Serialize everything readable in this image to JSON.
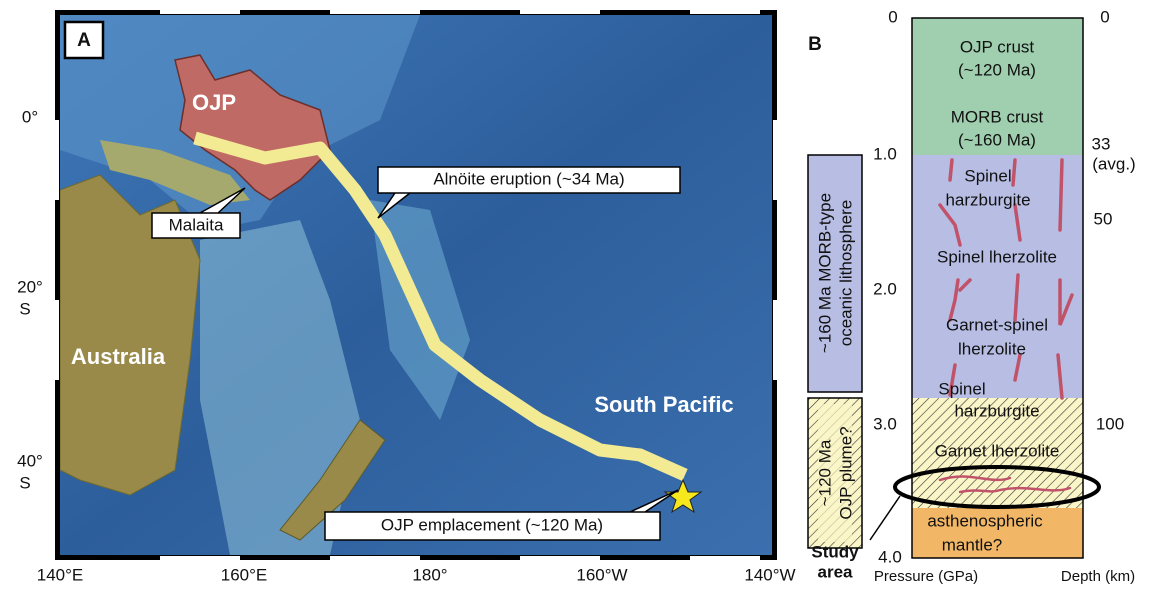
{
  "panel_a": {
    "label": "A",
    "places": {
      "ojp": "OJP",
      "australia": "Australia",
      "south_pacific": "South Pacific"
    },
    "callouts": {
      "malaita": "Malaita",
      "alnoite": "Alnöite eruption (~34 Ma)",
      "emplacement": "OJP emplacement (~120 Ma)"
    },
    "longitudes": [
      "140°E",
      "160°E",
      "180°",
      "160°W",
      "140°W"
    ],
    "latitudes": [
      {
        "degree": "0°"
      },
      {
        "degree": "20°",
        "hemisphere": "S"
      },
      {
        "degree": "40°",
        "hemisphere": "S"
      }
    ]
  },
  "panel_b": {
    "label": "B",
    "pressure_ticks": [
      "0",
      "1.0",
      "2.0",
      "3.0",
      "4.0"
    ],
    "depth_ticks": [
      {
        "value": "0"
      },
      {
        "value": "33",
        "note": "(avg.)"
      },
      {
        "value": "50"
      },
      {
        "value": "100"
      }
    ],
    "layers": [
      {
        "lines": [
          "OJP crust",
          "(~120 Ma)"
        ]
      },
      {
        "lines": [
          "MORB crust",
          "(~160 Ma)"
        ]
      },
      {
        "lines": [
          "Spinel",
          "harzburgite"
        ]
      },
      {
        "lines": [
          "Spinel lherzolite"
        ]
      },
      {
        "lines": [
          "Garnet-spinel",
          "lherzolite"
        ]
      },
      {
        "lines": [
          "Spinel",
          "harzburgite"
        ]
      },
      {
        "lines": [
          "Garnet lherzolite"
        ]
      },
      {
        "lines": [
          "asthenospheric",
          "mantle?"
        ]
      }
    ],
    "brackets": [
      {
        "lines": [
          "~160 Ma MORB-type",
          "oceanic lithosphere"
        ]
      },
      {
        "lines": [
          "~120 Ma",
          "OJP plume?"
        ]
      }
    ],
    "study_area": [
      "Study",
      "area"
    ],
    "pressure_label": "Pressure (GPa)",
    "depth_label": "Depth (km)"
  }
}
